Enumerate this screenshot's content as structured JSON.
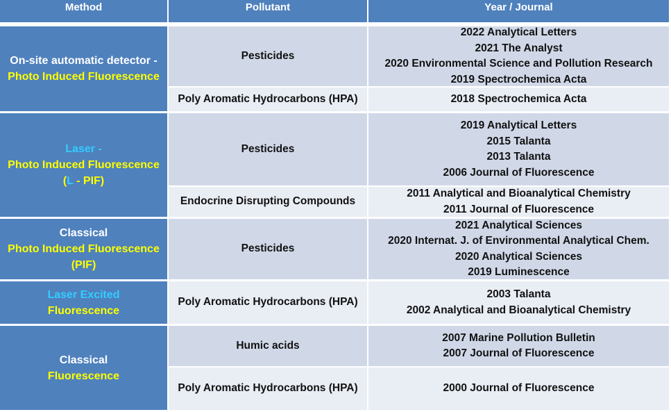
{
  "headers": {
    "method": "Method",
    "pollutant": "Pollutant",
    "year_journal": "Year / Journal"
  },
  "colors": {
    "header_bg": "#4f81bd",
    "method_bg": "#4f81bd",
    "row_odd": "#d0d8e8",
    "row_even": "#e9edf4",
    "yellow": "#ffff00",
    "cyan": "#33ccff"
  },
  "methods": {
    "m1": {
      "l1": "On-site automatic detector -",
      "l2": "Photo Induced Fluorescence"
    },
    "m2": {
      "l1": "Laser -",
      "l2": "Photo Induced Fluorescence",
      "l3a": "(",
      "l3b": "L",
      "l3c": " - PIF",
      "l3d": ")"
    },
    "m3": {
      "l1": "Classical",
      "l2": "Photo Induced Fluorescence",
      "l3": "(PIF)"
    },
    "m4": {
      "l1": "Laser Excited",
      "l2": "Fluorescence"
    },
    "m5": {
      "l1": "Classical",
      "l2": "Fluorescence"
    }
  },
  "rows": [
    {
      "pollutant": "Pesticides",
      "years": [
        "2022 Analytical Letters",
        "2021 The Analyst",
        "2020 Environmental Science and Pollution Research",
        "2019 Spectrochemica Acta"
      ]
    },
    {
      "pollutant": "Poly Aromatic Hydrocarbons (HPA)",
      "years": [
        "2018 Spectrochemica Acta"
      ]
    },
    {
      "pollutant": "Pesticides",
      "years": [
        "2019 Analytical Letters",
        "2015 Talanta",
        "2013 Talanta",
        "2006 Journal of Fluorescence"
      ]
    },
    {
      "pollutant": "Endocrine Disrupting Compounds",
      "years": [
        "2011  Analytical and Bioanalytical Chemistry",
        "2011 Journal of Fluorescence"
      ]
    },
    {
      "pollutant": "Pesticides",
      "years": [
        "2021 Analytical Sciences",
        "2020 Internat. J. of Environmental Analytical Chem.",
        "2020 Analytical Sciences",
        "2019 Luminescence"
      ]
    },
    {
      "pollutant": "Poly Aromatic Hydrocarbons (HPA)",
      "years": [
        "2003 Talanta",
        "2002  Analytical and Bioanalytical Chemistry"
      ]
    },
    {
      "pollutant": "Humic acids",
      "years": [
        "2007 Marine Pollution Bulletin",
        "2007 Journal of Fluorescence"
      ]
    },
    {
      "pollutant": "Poly Aromatic Hydrocarbons (HPA)",
      "years": [
        "2000 Journal of Fluorescence"
      ]
    }
  ]
}
